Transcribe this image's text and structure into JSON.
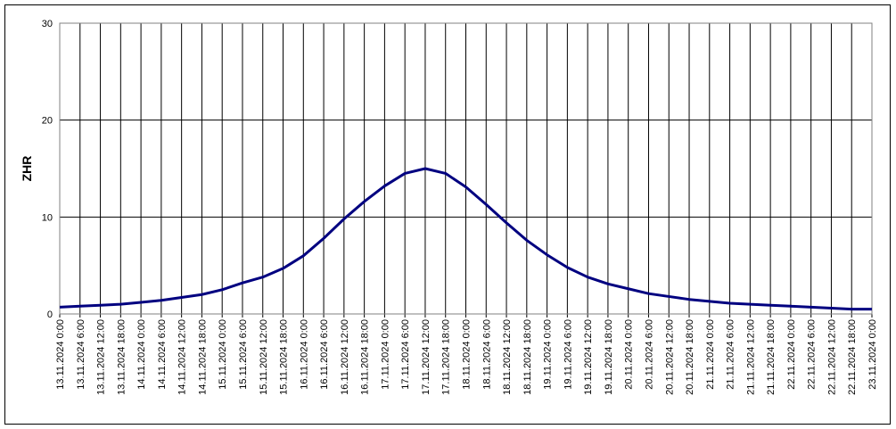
{
  "chart_data": {
    "type": "line",
    "y_label": "ZHR",
    "categories": [
      "13.11.2024 0:00",
      "13.11.2024 6:00",
      "13.11.2024 12:00",
      "13.11.2024 18:00",
      "14.11.2024 0:00",
      "14.11.2024 6:00",
      "14.11.2024 12:00",
      "14.11.2024 18:00",
      "15.11.2024 0:00",
      "15.11.2024 6:00",
      "15.11.2024 12:00",
      "15.11.2024 18:00",
      "16.11.2024 0:00",
      "16.11.2024 6:00",
      "16.11.2024 12:00",
      "16.11.2024 18:00",
      "17.11.2024 0:00",
      "17.11.2024 6:00",
      "17.11.2024 12:00",
      "17.11.2024 18:00",
      "18.11.2024 0:00",
      "18.11.2024 6:00",
      "18.11.2024 12:00",
      "18.11.2024 18:00",
      "19.11.2024 0:00",
      "19.11.2024 6:00",
      "19.11.2024 12:00",
      "19.11.2024 18:00",
      "20.11.2024 0:00",
      "20.11.2024 6:00",
      "20.11.2024 12:00",
      "20.11.2024 18:00",
      "21.11.2024 0:00",
      "21.11.2024 6:00",
      "21.11.2024 12:00",
      "21.11.2024 18:00",
      "22.11.2024 0:00",
      "22.11.2024 6:00",
      "22.11.2024 12:00",
      "22.11.2024 18:00",
      "23.11.2024 0:00"
    ],
    "values": [
      0.7,
      0.8,
      0.9,
      1.0,
      1.2,
      1.4,
      1.7,
      2.0,
      2.5,
      3.2,
      3.8,
      4.7,
      6.0,
      7.8,
      9.8,
      11.6,
      13.2,
      14.5,
      15.0,
      14.5,
      13.1,
      11.3,
      9.4,
      7.6,
      6.1,
      4.8,
      3.8,
      3.1,
      2.6,
      2.1,
      1.8,
      1.5,
      1.3,
      1.1,
      1.0,
      0.9,
      0.8,
      0.7,
      0.6,
      0.5,
      0.5
    ],
    "color": "#000080",
    "ylim": [
      0,
      30
    ],
    "yticks": [
      0,
      10,
      20,
      30
    ],
    "grid": true
  }
}
